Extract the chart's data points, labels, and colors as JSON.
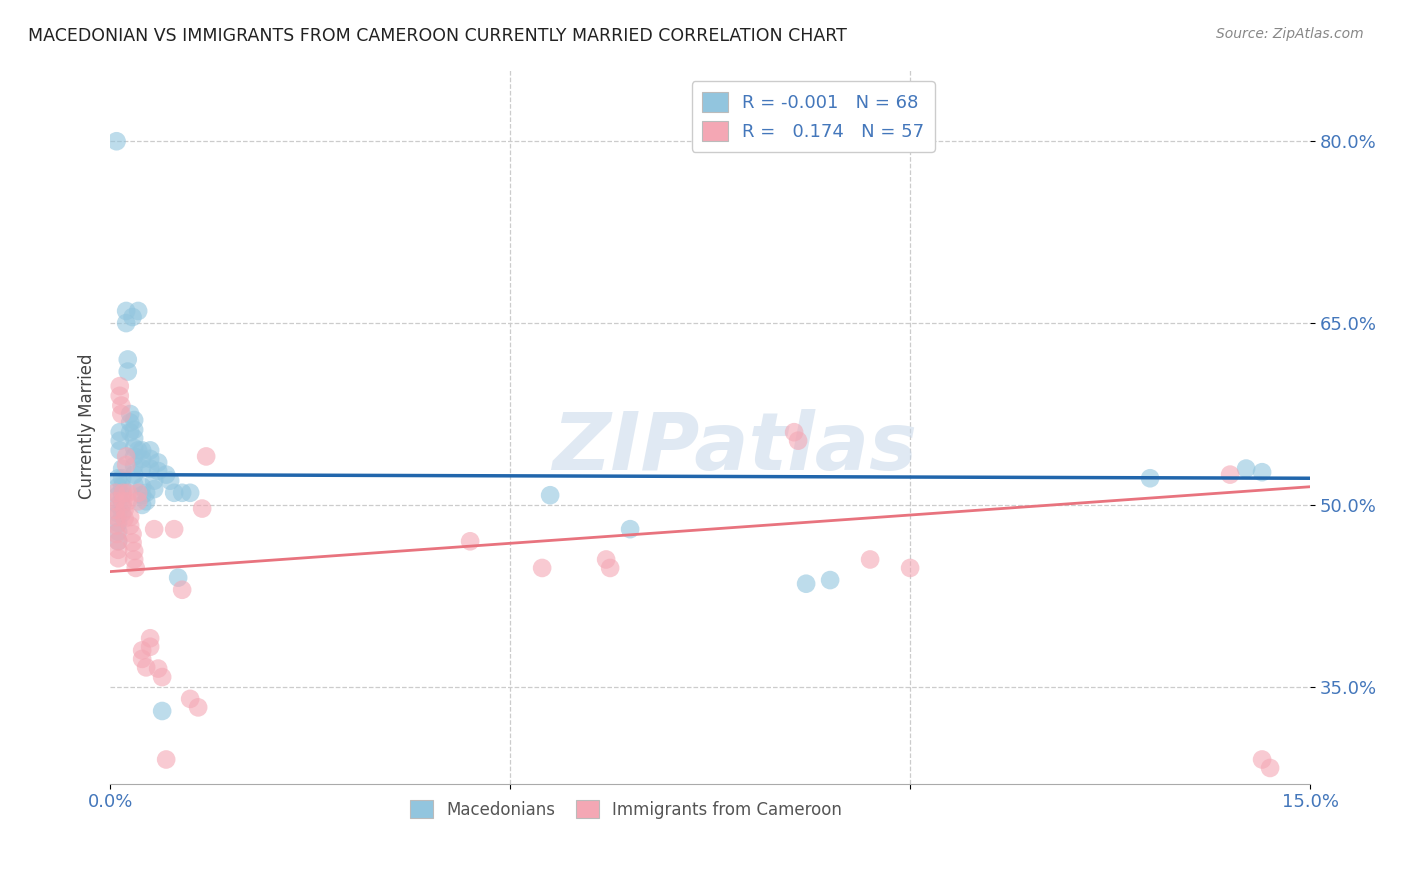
{
  "title": "MACEDONIAN VS IMMIGRANTS FROM CAMEROON CURRENTLY MARRIED CORRELATION CHART",
  "source": "Source: ZipAtlas.com",
  "ylabel": "Currently Married",
  "xlim": [
    0.0,
    0.15
  ],
  "ylim": [
    0.27,
    0.86
  ],
  "yticks": [
    0.35,
    0.5,
    0.65,
    0.8
  ],
  "ytick_labels": [
    "35.0%",
    "50.0%",
    "65.0%",
    "80.0%"
  ],
  "xticks": [
    0.0,
    0.05,
    0.1,
    0.15
  ],
  "xtick_labels": [
    "0.0%",
    "",
    "",
    "15.0%"
  ],
  "blue_R": "-0.001",
  "blue_N": "68",
  "pink_R": "0.174",
  "pink_N": "57",
  "blue_color": "#92c5de",
  "pink_color": "#f4a7b4",
  "blue_line_color": "#2166ac",
  "pink_line_color": "#e8737e",
  "tick_color": "#4477bb",
  "watermark": "ZIPatlas",
  "blue_line_y": [
    0.525,
    0.522
  ],
  "pink_line_y": [
    0.445,
    0.515
  ],
  "blue_points": [
    [
      0.0008,
      0.8
    ],
    [
      0.001,
      0.522
    ],
    [
      0.001,
      0.515
    ],
    [
      0.001,
      0.508
    ],
    [
      0.001,
      0.5
    ],
    [
      0.001,
      0.493
    ],
    [
      0.001,
      0.485
    ],
    [
      0.001,
      0.478
    ],
    [
      0.001,
      0.47
    ],
    [
      0.0012,
      0.56
    ],
    [
      0.0012,
      0.553
    ],
    [
      0.0012,
      0.545
    ],
    [
      0.0015,
      0.53
    ],
    [
      0.0015,
      0.522
    ],
    [
      0.0015,
      0.515
    ],
    [
      0.0015,
      0.508
    ],
    [
      0.0015,
      0.5
    ],
    [
      0.0015,
      0.493
    ],
    [
      0.002,
      0.66
    ],
    [
      0.002,
      0.65
    ],
    [
      0.0022,
      0.62
    ],
    [
      0.0022,
      0.61
    ],
    [
      0.0025,
      0.575
    ],
    [
      0.0025,
      0.568
    ],
    [
      0.0025,
      0.56
    ],
    [
      0.0028,
      0.655
    ],
    [
      0.003,
      0.57
    ],
    [
      0.003,
      0.562
    ],
    [
      0.003,
      0.555
    ],
    [
      0.003,
      0.547
    ],
    [
      0.003,
      0.54
    ],
    [
      0.003,
      0.532
    ],
    [
      0.003,
      0.525
    ],
    [
      0.003,
      0.517
    ],
    [
      0.0035,
      0.66
    ],
    [
      0.0035,
      0.545
    ],
    [
      0.004,
      0.545
    ],
    [
      0.004,
      0.538
    ],
    [
      0.004,
      0.53
    ],
    [
      0.004,
      0.515
    ],
    [
      0.004,
      0.508
    ],
    [
      0.004,
      0.5
    ],
    [
      0.0045,
      0.51
    ],
    [
      0.0045,
      0.503
    ],
    [
      0.005,
      0.545
    ],
    [
      0.005,
      0.538
    ],
    [
      0.005,
      0.53
    ],
    [
      0.0055,
      0.52
    ],
    [
      0.0055,
      0.513
    ],
    [
      0.006,
      0.535
    ],
    [
      0.006,
      0.528
    ],
    [
      0.0065,
      0.33
    ],
    [
      0.007,
      0.525
    ],
    [
      0.0075,
      0.52
    ],
    [
      0.008,
      0.51
    ],
    [
      0.0085,
      0.44
    ],
    [
      0.009,
      0.51
    ],
    [
      0.01,
      0.51
    ],
    [
      0.055,
      0.508
    ],
    [
      0.065,
      0.48
    ],
    [
      0.087,
      0.435
    ],
    [
      0.09,
      0.438
    ],
    [
      0.13,
      0.522
    ],
    [
      0.142,
      0.53
    ],
    [
      0.144,
      0.527
    ]
  ],
  "pink_points": [
    [
      0.0007,
      0.51
    ],
    [
      0.0007,
      0.503
    ],
    [
      0.0007,
      0.496
    ],
    [
      0.0008,
      0.49
    ],
    [
      0.0008,
      0.483
    ],
    [
      0.0008,
      0.476
    ],
    [
      0.001,
      0.47
    ],
    [
      0.001,
      0.463
    ],
    [
      0.001,
      0.456
    ],
    [
      0.0012,
      0.598
    ],
    [
      0.0012,
      0.59
    ],
    [
      0.0014,
      0.582
    ],
    [
      0.0014,
      0.575
    ],
    [
      0.0016,
      0.51
    ],
    [
      0.0016,
      0.503
    ],
    [
      0.0018,
      0.496
    ],
    [
      0.0018,
      0.489
    ],
    [
      0.002,
      0.54
    ],
    [
      0.002,
      0.533
    ],
    [
      0.0022,
      0.51
    ],
    [
      0.0022,
      0.503
    ],
    [
      0.0025,
      0.49
    ],
    [
      0.0025,
      0.483
    ],
    [
      0.0028,
      0.476
    ],
    [
      0.0028,
      0.469
    ],
    [
      0.003,
      0.462
    ],
    [
      0.003,
      0.455
    ],
    [
      0.0032,
      0.448
    ],
    [
      0.0035,
      0.51
    ],
    [
      0.0035,
      0.503
    ],
    [
      0.004,
      0.38
    ],
    [
      0.004,
      0.373
    ],
    [
      0.0045,
      0.366
    ],
    [
      0.005,
      0.39
    ],
    [
      0.005,
      0.383
    ],
    [
      0.0055,
      0.48
    ],
    [
      0.006,
      0.365
    ],
    [
      0.0065,
      0.358
    ],
    [
      0.007,
      0.29
    ],
    [
      0.008,
      0.48
    ],
    [
      0.009,
      0.43
    ],
    [
      0.01,
      0.34
    ],
    [
      0.011,
      0.333
    ],
    [
      0.0115,
      0.497
    ],
    [
      0.012,
      0.54
    ],
    [
      0.045,
      0.47
    ],
    [
      0.054,
      0.448
    ],
    [
      0.062,
      0.455
    ],
    [
      0.0625,
      0.448
    ],
    [
      0.0855,
      0.56
    ],
    [
      0.086,
      0.553
    ],
    [
      0.095,
      0.455
    ],
    [
      0.1,
      0.448
    ],
    [
      0.14,
      0.525
    ],
    [
      0.144,
      0.29
    ],
    [
      0.145,
      0.283
    ]
  ]
}
